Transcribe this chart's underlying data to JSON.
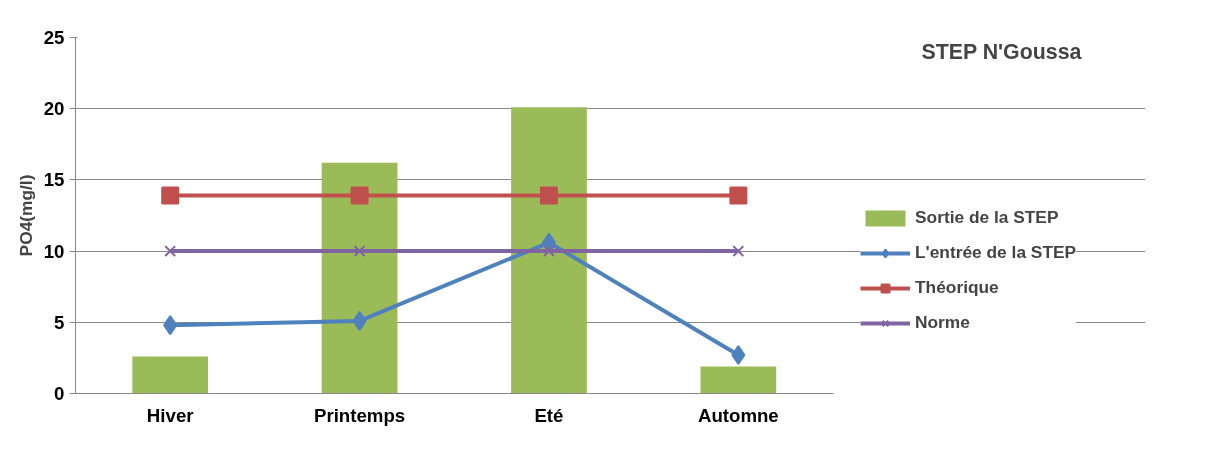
{
  "chart_data": {
    "type": "bar",
    "title": "STEP N'Goussa",
    "ylabel": "PO4(mg/l)",
    "categories": [
      "Hiver",
      "Printemps",
      "Eté",
      "Automne"
    ],
    "series": [
      {
        "name": "Sortie de la STEP",
        "color": "#9bbb59",
        "values": [
          2.6,
          16.2,
          20.1,
          1.9
        ]
      },
      {
        "name": "L'entrée de la STEP",
        "type": "line",
        "color": "#4f81bd",
        "marker": "diamond",
        "values": [
          4.8,
          5.1,
          10.6,
          2.7
        ]
      },
      {
        "name": "Théorique",
        "type": "line",
        "color": "#c0504d",
        "marker": "square",
        "values": [
          13.9,
          13.9,
          13.9,
          13.9
        ]
      },
      {
        "name": "Norme",
        "type": "line",
        "color": "#8064a2",
        "marker": "cross",
        "values": [
          10,
          10,
          10,
          10
        ]
      }
    ],
    "ylim": [
      0,
      25
    ],
    "yticks": [
      0,
      5,
      10,
      15,
      20,
      25
    ],
    "grid": "y",
    "legend": "right"
  }
}
